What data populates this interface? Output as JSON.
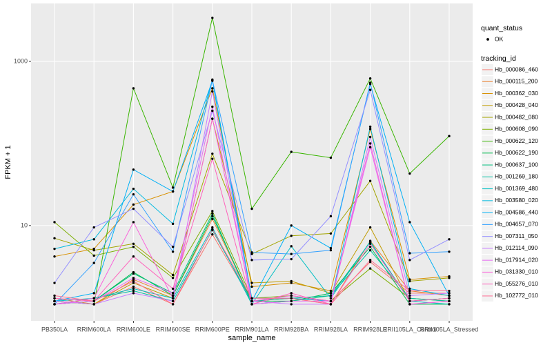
{
  "chart_data": {
    "type": "line",
    "xlabel": "sample_name",
    "ylabel": "FPKM + 1",
    "log_scale": true,
    "grid": true,
    "ylim": [
      0.69,
      5080
    ],
    "yticks": [
      10,
      1000
    ],
    "point_color": "#000000",
    "shape_legend": {
      "title": "quant_status",
      "labels": [
        "OK"
      ]
    },
    "legend_title": "tracking_id",
    "categories": [
      "PB350LA",
      "RRIM600LA",
      "RRIM600LE",
      "RRIM600SE",
      "RRIM600PE",
      "RRIM901LA",
      "RRIM928BA",
      "RRIM928LA",
      "RRIM928LE",
      "RRII105LA_Control",
      "RRII105LA_Stressed"
    ],
    "series": [
      {
        "name": "Hb_000086_460",
        "color": "#F8766D",
        "values": [
          1.2,
          1.1,
          1.8,
          1.1,
          7.8,
          1.2,
          1.3,
          1.2,
          3.6,
          1.5,
          1.5
        ]
      },
      {
        "name": "Hb_000115_200",
        "color": "#EA8331",
        "values": [
          1.3,
          1.1,
          2.2,
          1.4,
          12,
          1.2,
          1.3,
          1.1,
          6.5,
          1.6,
          1.4
        ]
      },
      {
        "name": "Hb_000362_030",
        "color": "#D89000",
        "values": [
          4.2,
          5.2,
          18,
          26,
          470,
          1.8,
          2,
          1.6,
          150,
          2.2,
          2.4
        ]
      },
      {
        "name": "Hb_000428_040",
        "color": "#C09B00",
        "values": [
          1.2,
          1.1,
          2.0,
          1.3,
          200,
          2.0,
          2.1,
          1.5,
          9.5,
          1.2,
          1.3
        ]
      },
      {
        "name": "Hb_000482_080",
        "color": "#A3A500",
        "values": [
          7,
          5,
          6,
          2.5,
          75,
          4.5,
          7.5,
          8,
          35,
          2.1,
          2.3
        ]
      },
      {
        "name": "Hb_000608_090",
        "color": "#7CAE00",
        "values": [
          11,
          4.3,
          5.5,
          2.3,
          15,
          1.3,
          1.4,
          1.2,
          3.0,
          1.3,
          1.2
        ]
      },
      {
        "name": "Hb_000622_120",
        "color": "#39B600",
        "values": [
          1.2,
          1.1,
          470,
          29,
          3390,
          16,
          79,
          67,
          620,
          43,
          123
        ]
      },
      {
        "name": "Hb_000622_190",
        "color": "#00BB4E",
        "values": [
          1.1,
          1.2,
          2.7,
          1.4,
          13,
          1.2,
          1.2,
          1.5,
          5.5,
          1.1,
          1.1
        ]
      },
      {
        "name": "Hb_000637_100",
        "color": "#00BF7D",
        "values": [
          1.1,
          1.2,
          2.6,
          1.5,
          14,
          1.1,
          1.2,
          1.4,
          6.3,
          1.2,
          1.3
        ]
      },
      {
        "name": "Hb_001269_180",
        "color": "#00C1A3",
        "values": [
          1.1,
          1.3,
          1.6,
          1.2,
          8.8,
          1.2,
          1.3,
          1.4,
          5,
          1.3,
          1.2
        ]
      },
      {
        "name": "Hb_001369_480",
        "color": "#00BFC4",
        "values": [
          1.2,
          1.3,
          1.7,
          1.3,
          9.5,
          1.1,
          5.6,
          1.3,
          6.4,
          1.2,
          1.1
        ]
      },
      {
        "name": "Hb_003580_020",
        "color": "#00BAE0",
        "values": [
          5.2,
          6.8,
          28,
          10.5,
          600,
          1.3,
          1.3,
          1.2,
          160,
          1.7,
          1.4
        ]
      },
      {
        "name": "Hb_004586_440",
        "color": "#00B0F6",
        "values": [
          1.2,
          1.5,
          48,
          26,
          580,
          1.2,
          10,
          5.3,
          530,
          11,
          1.4
        ]
      },
      {
        "name": "Hb_004657_070",
        "color": "#35A2FF",
        "values": [
          1.1,
          3.5,
          24,
          4.8,
          590,
          4.7,
          4.5,
          5.0,
          550,
          4.6,
          4.8
        ]
      },
      {
        "name": "Hb_007311_050",
        "color": "#9590FF",
        "values": [
          2.0,
          9.5,
          16,
          5.5,
          250,
          3.8,
          3.9,
          13,
          450,
          3.8,
          6.8
        ]
      },
      {
        "name": "Hb_012114_090",
        "color": "#C77CFF",
        "values": [
          1.2,
          1.1,
          1.5,
          1.2,
          430,
          1.2,
          1.1,
          1.1,
          120,
          1.4,
          1.5
        ]
      },
      {
        "name": "Hb_017914_020",
        "color": "#E76BF3",
        "values": [
          1.1,
          1.2,
          2.3,
          1.5,
          280,
          1.1,
          1.2,
          1.2,
          90,
          1.1,
          1.2
        ]
      },
      {
        "name": "Hb_031330_010",
        "color": "#FA62DB",
        "values": [
          1.1,
          1.3,
          11,
          1.3,
          200,
          1.2,
          1.4,
          1.2,
          100,
          1.1,
          1.2
        ]
      },
      {
        "name": "Hb_055276_010",
        "color": "#FF62BC",
        "values": [
          1.3,
          1.2,
          4.2,
          1.7,
          65,
          1.1,
          1.5,
          1.1,
          6.0,
          1.2,
          1.3
        ]
      },
      {
        "name": "Hb_102772_010",
        "color": "#FF6C91",
        "values": [
          1.4,
          1.2,
          2.1,
          1.1,
          9,
          1.3,
          1.3,
          1.1,
          3.8,
          1.6,
          1.6
        ]
      }
    ]
  }
}
